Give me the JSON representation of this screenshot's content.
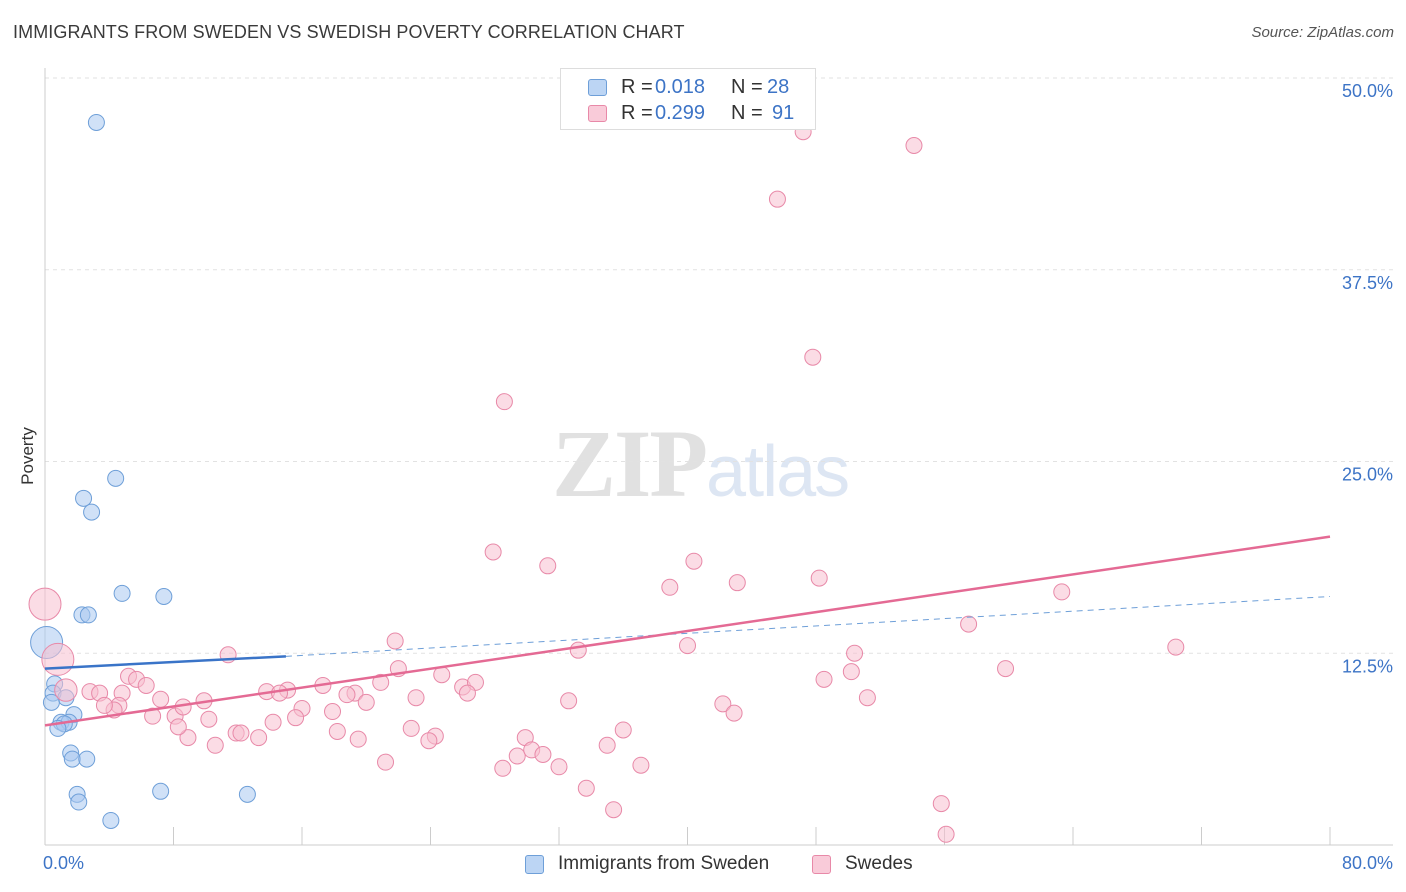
{
  "title": "IMMIGRANTS FROM SWEDEN VS SWEDISH POVERTY CORRELATION CHART",
  "source": "Source: ZipAtlas.com",
  "watermark": {
    "zip": "ZIP",
    "atlas": "atlas"
  },
  "stat_legend": [
    {
      "r_label": "R =",
      "r_value": "0.018",
      "n_label": "N =",
      "n_value": "28",
      "color": "#a9c8f0",
      "border": "#6e9fd8"
    },
    {
      "r_label": "R =",
      "r_value": "0.299",
      "n_label": "N =",
      "n_value": "91",
      "color": "#f7bfd0",
      "border": "#e889a8"
    }
  ],
  "bottom_legend": [
    {
      "label": "Immigrants from Sweden",
      "color": "#bcd5f4",
      "border": "#6e9fd8"
    },
    {
      "label": "Swedes",
      "color": "#f9cbd9",
      "border": "#e889a8"
    }
  ],
  "chart_data": {
    "type": "scatter",
    "title": "IMMIGRANTS FROM SWEDEN VS SWEDISH POVERTY CORRELATION CHART",
    "xlabel": "",
    "ylabel": "Poverty",
    "xlim": [
      0,
      80
    ],
    "ylim": [
      0,
      50
    ],
    "x_tick_labels": [
      "0.0%",
      "80.0%"
    ],
    "y_ticks": [
      12.5,
      25,
      37.5,
      50
    ],
    "y_tick_labels": [
      "12.5%",
      "25.0%",
      "37.5%",
      "50.0%"
    ],
    "grid": true,
    "series": [
      {
        "name": "Immigrants from Sweden",
        "color": "#a9c8f0",
        "stroke": "#6e9fd8",
        "trend_color": "#3a74c8",
        "trend": {
          "x0": 0,
          "y0": 11.5,
          "x1": 15,
          "y1": 12.3,
          "dash_to_x": 80,
          "dash_to_y": 16.2
        },
        "points": [
          [
            3.2,
            47.1,
            1
          ],
          [
            4.4,
            23.9,
            1
          ],
          [
            2.4,
            22.6,
            1
          ],
          [
            2.9,
            21.7,
            1
          ],
          [
            4.8,
            16.4,
            1
          ],
          [
            7.4,
            16.2,
            1
          ],
          [
            2.3,
            15.0,
            1
          ],
          [
            2.7,
            15.0,
            1
          ],
          [
            0.1,
            13.2,
            2
          ],
          [
            0.6,
            10.5,
            1
          ],
          [
            0.5,
            9.9,
            1
          ],
          [
            1.3,
            9.6,
            1
          ],
          [
            0.4,
            9.3,
            1
          ],
          [
            1.8,
            8.5,
            1
          ],
          [
            1.0,
            8.0,
            1
          ],
          [
            1.5,
            8.0,
            1
          ],
          [
            1.2,
            7.9,
            1
          ],
          [
            0.8,
            7.6,
            1
          ],
          [
            1.6,
            6.0,
            1
          ],
          [
            1.7,
            5.6,
            1
          ],
          [
            2.6,
            5.6,
            1
          ],
          [
            2.0,
            3.3,
            1
          ],
          [
            2.1,
            2.8,
            1
          ],
          [
            7.2,
            3.5,
            1
          ],
          [
            12.6,
            3.3,
            1
          ],
          [
            4.1,
            1.6,
            1
          ]
        ]
      },
      {
        "name": "Swedes",
        "color": "#f7bfd0",
        "stroke": "#e889a8",
        "trend_color": "#e46a94",
        "trend": {
          "x0": 0,
          "y0": 7.8,
          "x1": 80,
          "y1": 20.1
        },
        "points": [
          [
            47.2,
            46.5,
            1
          ],
          [
            54.1,
            45.6,
            1
          ],
          [
            45.6,
            42.1,
            1
          ],
          [
            47.8,
            31.8,
            1
          ],
          [
            28.6,
            28.9,
            1
          ],
          [
            27.9,
            19.1,
            1
          ],
          [
            31.3,
            18.2,
            1
          ],
          [
            40.4,
            18.5,
            1
          ],
          [
            43.1,
            17.1,
            1
          ],
          [
            48.2,
            17.4,
            1
          ],
          [
            38.9,
            16.8,
            1
          ],
          [
            63.3,
            16.5,
            1
          ],
          [
            57.5,
            14.4,
            1
          ],
          [
            70.4,
            12.9,
            1
          ],
          [
            33.2,
            12.7,
            1
          ],
          [
            40.0,
            13.0,
            1
          ],
          [
            50.4,
            12.5,
            1
          ],
          [
            21.8,
            13.3,
            1
          ],
          [
            11.4,
            12.4,
            1
          ],
          [
            59.8,
            11.5,
            1
          ],
          [
            50.2,
            11.3,
            1
          ],
          [
            48.5,
            10.8,
            1
          ],
          [
            22.0,
            11.5,
            1
          ],
          [
            24.7,
            11.1,
            1
          ],
          [
            26.0,
            10.3,
            1
          ],
          [
            26.8,
            10.6,
            1
          ],
          [
            26.3,
            9.9,
            1
          ],
          [
            20.9,
            10.6,
            1
          ],
          [
            17.3,
            10.4,
            1
          ],
          [
            19.3,
            9.9,
            1
          ],
          [
            18.8,
            9.8,
            1
          ],
          [
            20.0,
            9.3,
            1
          ],
          [
            13.8,
            10.0,
            1
          ],
          [
            15.1,
            10.1,
            1
          ],
          [
            14.6,
            9.9,
            1
          ],
          [
            16.0,
            8.9,
            1
          ],
          [
            15.6,
            8.3,
            1
          ],
          [
            17.9,
            8.7,
            1
          ],
          [
            18.2,
            7.4,
            1
          ],
          [
            19.5,
            6.9,
            1
          ],
          [
            23.1,
            9.6,
            1
          ],
          [
            22.8,
            7.6,
            1
          ],
          [
            24.3,
            7.1,
            1
          ],
          [
            23.9,
            6.8,
            1
          ],
          [
            21.2,
            5.4,
            1
          ],
          [
            0.0,
            15.7,
            2
          ],
          [
            0.8,
            12.1,
            2
          ],
          [
            1.3,
            10.1,
            1.4
          ],
          [
            2.8,
            10.0,
            1
          ],
          [
            3.4,
            9.9,
            1
          ],
          [
            4.8,
            9.9,
            1
          ],
          [
            5.2,
            11.0,
            1
          ],
          [
            5.7,
            10.8,
            1
          ],
          [
            6.3,
            10.4,
            1
          ],
          [
            7.2,
            9.5,
            1
          ],
          [
            9.9,
            9.4,
            1
          ],
          [
            10.2,
            8.2,
            1
          ],
          [
            6.7,
            8.4,
            1
          ],
          [
            8.1,
            8.4,
            1
          ],
          [
            8.6,
            9.0,
            1
          ],
          [
            4.6,
            9.1,
            1
          ],
          [
            4.3,
            8.8,
            1
          ],
          [
            3.7,
            9.1,
            1
          ],
          [
            11.9,
            7.3,
            1
          ],
          [
            12.2,
            7.3,
            1
          ],
          [
            13.3,
            7.0,
            1
          ],
          [
            14.2,
            8.0,
            1
          ],
          [
            8.9,
            7.0,
            1
          ],
          [
            10.6,
            6.5,
            1
          ],
          [
            8.3,
            7.7,
            1
          ],
          [
            28.5,
            5.0,
            1
          ],
          [
            29.4,
            5.8,
            1
          ],
          [
            29.9,
            7.0,
            1
          ],
          [
            30.3,
            6.2,
            1
          ],
          [
            31.0,
            5.9,
            1
          ],
          [
            32.0,
            5.1,
            1
          ],
          [
            32.6,
            9.4,
            1
          ],
          [
            33.7,
            3.7,
            1
          ],
          [
            35.0,
            6.5,
            1
          ],
          [
            35.4,
            2.3,
            1
          ],
          [
            36.0,
            7.5,
            1
          ],
          [
            37.1,
            5.2,
            1
          ],
          [
            42.2,
            9.2,
            1
          ],
          [
            42.9,
            8.6,
            1
          ],
          [
            51.2,
            9.6,
            1
          ],
          [
            55.8,
            2.7,
            1
          ],
          [
            56.1,
            0.7,
            1
          ]
        ]
      }
    ]
  }
}
